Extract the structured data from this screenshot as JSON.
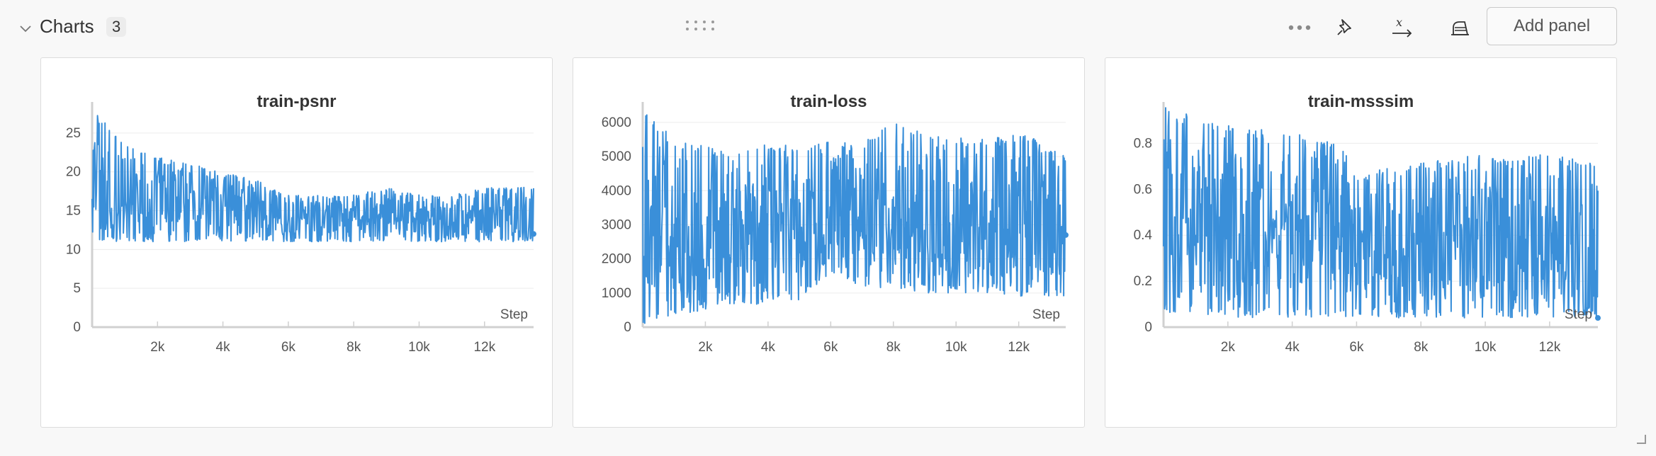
{
  "section": {
    "title": "Charts",
    "count": "3",
    "add_panel_label": "Add panel"
  },
  "icons": {
    "collapse": "chevron-down-icon",
    "drag": "drag-handle-icon",
    "more": "more-options-icon",
    "pin": "pin-icon",
    "x_axis": "x-axis-icon",
    "clean": "eraser-icon"
  },
  "colors": {
    "series": "#3a8fd9",
    "grid": "#ececec",
    "axis": "#d0d0d0"
  },
  "chart_data": [
    {
      "type": "line",
      "title": "train-psnr",
      "xlabel": "Step",
      "ylabel": "",
      "xlim": [
        0,
        13500
      ],
      "ylim": [
        0,
        29
      ],
      "x_ticks": [
        2000,
        4000,
        6000,
        8000,
        10000,
        12000
      ],
      "x_tick_labels": [
        "2k",
        "4k",
        "6k",
        "8k",
        "10k",
        "12k"
      ],
      "y_ticks": [
        0,
        5,
        10,
        15,
        20,
        25
      ],
      "y_tick_labels": [
        "0",
        "5",
        "10",
        "15",
        "20",
        "25"
      ],
      "grid": true,
      "series": [
        {
          "x": [
            0,
            1000,
            2000,
            3000,
            4000,
            5000,
            6000,
            7000,
            8000,
            9000,
            10000,
            11000,
            12000,
            13500
          ],
          "y_low": [
            11,
            11,
            11,
            11,
            11,
            11,
            11,
            11,
            11,
            11,
            11,
            11,
            11,
            11
          ],
          "y_high": [
            28,
            24,
            22,
            21,
            20,
            19,
            17,
            17,
            17,
            18,
            17,
            17,
            18,
            18
          ],
          "y_mean": [
            17,
            16,
            15.5,
            15,
            15,
            14.5,
            14,
            14,
            14,
            14,
            14,
            14,
            14,
            12
          ]
        }
      ]
    },
    {
      "type": "line",
      "title": "train-loss",
      "xlabel": "Step",
      "ylabel": "",
      "xlim": [
        0,
        13500
      ],
      "ylim": [
        0,
        6600
      ],
      "x_ticks": [
        2000,
        4000,
        6000,
        8000,
        10000,
        12000
      ],
      "x_tick_labels": [
        "2k",
        "4k",
        "6k",
        "8k",
        "10k",
        "12k"
      ],
      "y_ticks": [
        0,
        1000,
        2000,
        3000,
        4000,
        5000,
        6000
      ],
      "y_tick_labels": [
        "0",
        "1000",
        "2000",
        "3000",
        "4000",
        "5000",
        "6000"
      ],
      "grid": true,
      "series": [
        {
          "x": [
            0,
            1000,
            2000,
            3000,
            4000,
            5000,
            6000,
            7000,
            8000,
            9000,
            10000,
            11000,
            12000,
            13500
          ],
          "y_low": [
            100,
            300,
            500,
            600,
            700,
            800,
            1500,
            1200,
            1100,
            1000,
            1000,
            1000,
            900,
            900
          ],
          "y_high": [
            6500,
            5500,
            5300,
            5200,
            5400,
            5300,
            5500,
            5400,
            6000,
            5800,
            5600,
            5500,
            5800,
            5000
          ],
          "y_mean": [
            2500,
            2600,
            2700,
            2700,
            2800,
            2900,
            3200,
            3000,
            3000,
            3000,
            2900,
            2900,
            2900,
            2700
          ]
        }
      ]
    },
    {
      "type": "line",
      "title": "train-msssim",
      "xlabel": "Step",
      "ylabel": "",
      "xlim": [
        0,
        13500
      ],
      "ylim": [
        0,
        0.98
      ],
      "x_ticks": [
        2000,
        4000,
        6000,
        8000,
        10000,
        12000
      ],
      "x_tick_labels": [
        "2k",
        "4k",
        "6k",
        "8k",
        "10k",
        "12k"
      ],
      "y_ticks": [
        0,
        0.2,
        0.4,
        0.6,
        0.8
      ],
      "y_tick_labels": [
        "0",
        "0.2",
        "0.4",
        "0.6",
        "0.8"
      ],
      "grid": true,
      "series": [
        {
          "x": [
            0,
            1000,
            2000,
            3000,
            4000,
            5000,
            5700,
            6000,
            7000,
            8000,
            9000,
            10000,
            11000,
            12000,
            13500
          ],
          "y_low": [
            0.05,
            0.05,
            0.04,
            0.04,
            0.04,
            0.04,
            0.04,
            0.04,
            0.04,
            0.04,
            0.04,
            0.04,
            0.04,
            0.04,
            0.04
          ],
          "y_high": [
            0.96,
            0.92,
            0.88,
            0.86,
            0.85,
            0.82,
            0.78,
            0.65,
            0.7,
            0.72,
            0.74,
            0.75,
            0.74,
            0.76,
            0.72
          ],
          "y_mean": [
            0.5,
            0.48,
            0.45,
            0.44,
            0.42,
            0.4,
            0.38,
            0.28,
            0.3,
            0.32,
            0.33,
            0.34,
            0.34,
            0.35,
            0.04
          ]
        }
      ]
    }
  ]
}
